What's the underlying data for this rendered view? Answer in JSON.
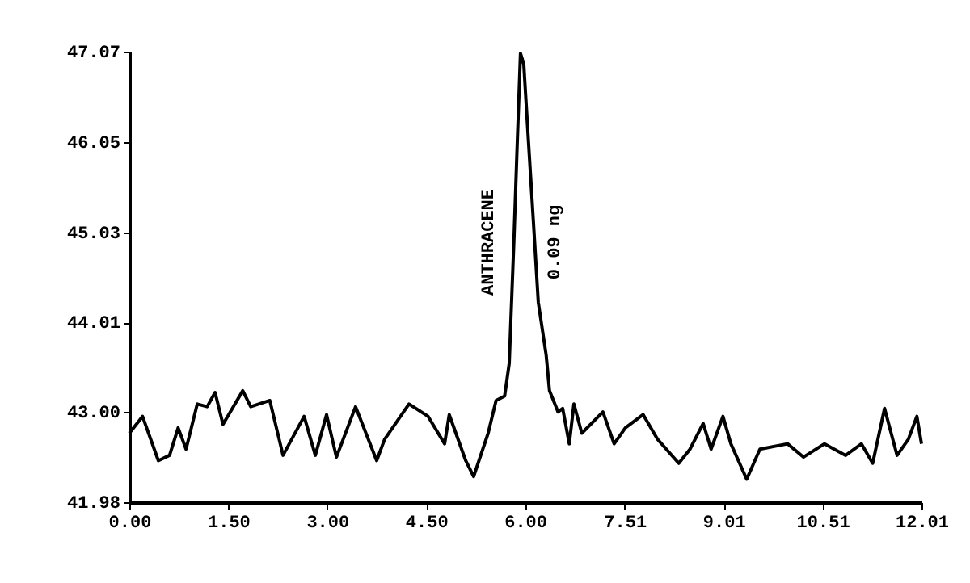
{
  "chart_data": {
    "type": "line",
    "x": [
      0.0,
      0.2,
      0.44,
      0.61,
      0.74,
      0.86,
      1.03,
      1.18,
      1.3,
      1.42,
      1.72,
      1.84,
      2.13,
      2.33,
      2.65,
      2.82,
      2.99,
      3.14,
      3.43,
      3.75,
      3.87,
      4.24,
      4.53,
      4.78,
      4.85,
      5.1,
      5.22,
      5.44,
      5.56,
      5.69,
      5.76,
      5.78,
      5.83,
      5.88,
      5.93,
      5.98,
      6.05,
      6.13,
      6.2,
      6.32,
      6.37,
      6.5,
      6.57,
      6.67,
      6.74,
      6.86,
      7.18,
      7.35,
      7.52,
      7.79,
      8.01,
      8.33,
      8.5,
      8.7,
      8.82,
      9.0,
      9.12,
      9.36,
      9.56,
      9.98,
      10.22,
      10.54,
      10.86,
      11.1,
      11.27,
      11.45,
      11.64,
      11.81,
      11.94,
      12.01
    ],
    "series": [
      {
        "color": "#000000",
        "values": [
          42.76,
          42.95,
          42.45,
          42.51,
          42.82,
          42.58,
          43.09,
          43.06,
          43.22,
          42.86,
          43.24,
          43.06,
          43.13,
          42.51,
          42.95,
          42.51,
          42.97,
          42.49,
          43.06,
          42.45,
          42.69,
          43.09,
          42.95,
          42.64,
          42.97,
          42.45,
          42.27,
          42.76,
          43.13,
          43.18,
          43.55,
          43.95,
          44.92,
          46.01,
          47.05,
          46.93,
          46.07,
          45.1,
          44.24,
          43.64,
          43.24,
          43.0,
          43.04,
          42.64,
          43.09,
          42.76,
          43.0,
          42.64,
          42.82,
          42.97,
          42.69,
          42.42,
          42.58,
          42.87,
          42.58,
          42.95,
          42.64,
          42.24,
          42.58,
          42.64,
          42.49,
          42.64,
          42.51,
          42.64,
          42.42,
          43.04,
          42.51,
          42.69,
          42.95,
          42.64
        ]
      }
    ],
    "xlim": [
      0,
      12.01
    ],
    "xticks": [
      {
        "value": 0,
        "label": "0.00"
      },
      {
        "value": 1.5,
        "label": "1.50"
      },
      {
        "value": 3,
        "label": "3.00"
      },
      {
        "value": 4.5,
        "label": "4.50"
      },
      {
        "value": 6,
        "label": "6.00"
      },
      {
        "value": 7.51,
        "label": "7.51"
      },
      {
        "value": 9.01,
        "label": "9.01"
      },
      {
        "value": 10.51,
        "label": "10.51"
      },
      {
        "value": 12.01,
        "label": "12.01"
      }
    ],
    "ylim": [
      41.98,
      47.07
    ],
    "yticks": [
      41.98,
      {
        "value": 43,
        "label": "43.00"
      },
      44.01,
      45.03,
      46.05,
      47.07
    ],
    "grid": false,
    "marker": "none",
    "line_style": "solid",
    "annotations": [
      "ANTHRACENE",
      "0.09 ng"
    ]
  }
}
